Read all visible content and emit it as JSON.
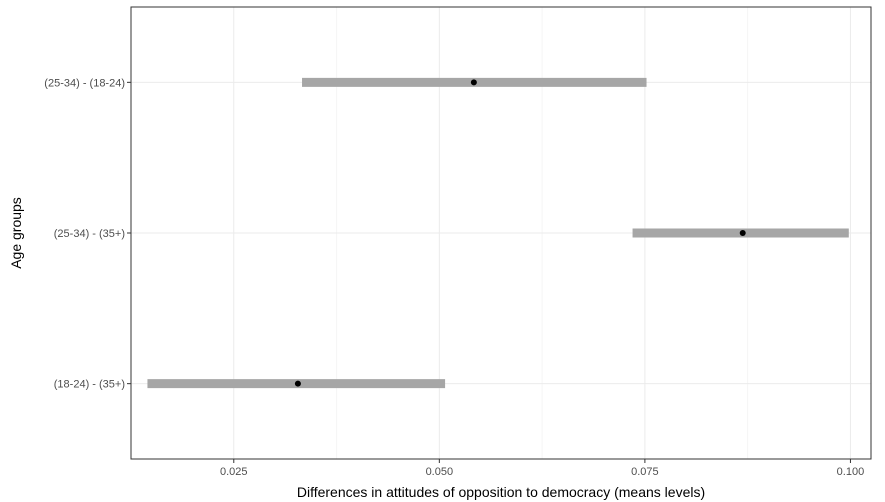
{
  "chart_data": {
    "type": "interval",
    "xlabel": "Differences in attitudes of opposition to democracy (means levels)",
    "ylabel": "Age groups",
    "xlim": [
      0.0125,
      0.1025
    ],
    "x_ticks": [
      0.025,
      0.05,
      0.075,
      0.1
    ],
    "x_tick_labels": [
      "0.025",
      "0.050",
      "0.075",
      "0.100"
    ],
    "categories": [
      "(25-34) - (18-24)",
      "(25-34) - (35+)",
      "(18-24) - (35+)"
    ],
    "estimates": [
      0.0542,
      0.0869,
      0.0328
    ],
    "lower": [
      0.0333,
      0.0735,
      0.0145
    ],
    "upper": [
      0.0752,
      0.0998,
      0.0507
    ],
    "grid": true,
    "colors": {
      "interval": "#a6a6a6",
      "point": "#000000",
      "grid_major": "#ebebeb",
      "grid_minor": "#f5f5f5",
      "border": "#333333",
      "tick_text": "#4d4d4d"
    }
  }
}
